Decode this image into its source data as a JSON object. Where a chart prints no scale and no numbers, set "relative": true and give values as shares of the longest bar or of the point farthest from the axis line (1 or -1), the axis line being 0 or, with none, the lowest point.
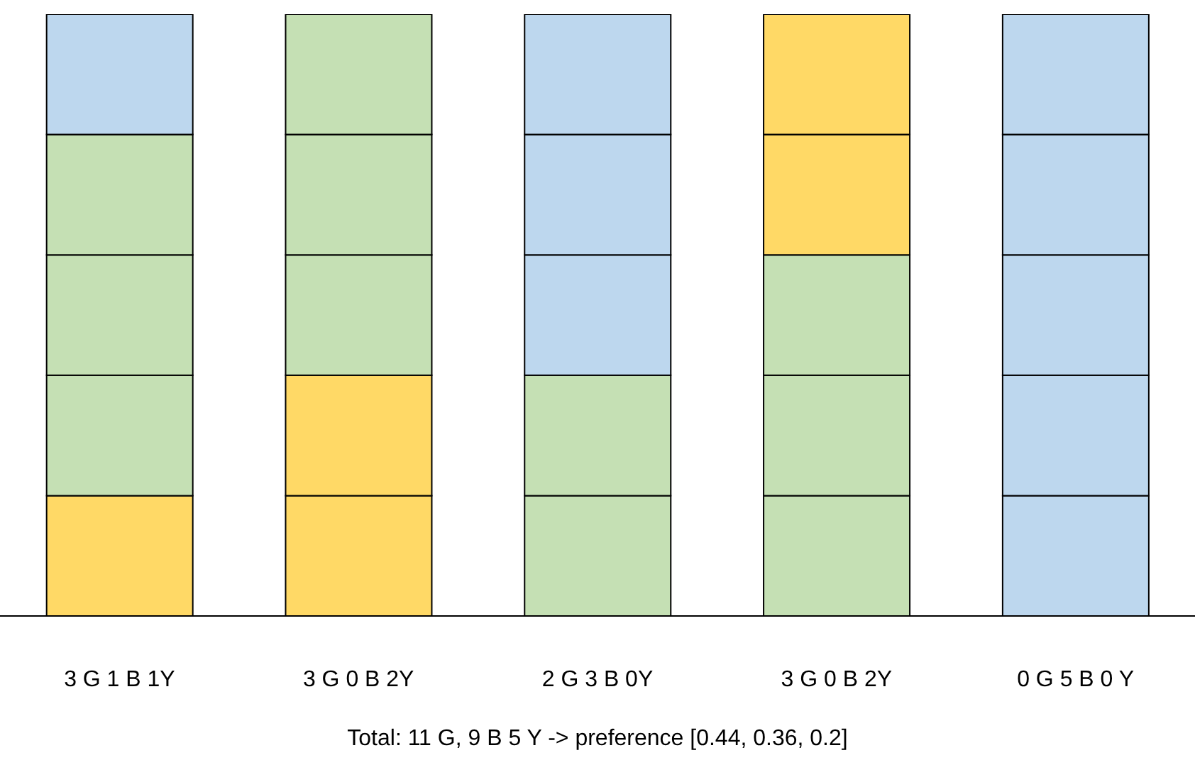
{
  "chart_data": {
    "type": "bar",
    "stacked": true,
    "relative": true,
    "categories": [
      "3 G 1 B 1Y",
      "3 G 0 B 2Y",
      "2 G 3 B 0Y",
      "3 G 0 B 2Y",
      "0 G 5 B 0 Y"
    ],
    "series": [
      {
        "values": [
          0.2,
          0.2,
          0.2,
          0.2,
          0.2
        ],
        "colors": [
          "#ffd966",
          "#ffd966",
          "#c5e0b4",
          "#c5e0b4",
          "#bdd7ee"
        ]
      },
      {
        "values": [
          0.2,
          0.2,
          0.2,
          0.2,
          0.2
        ],
        "colors": [
          "#c5e0b4",
          "#ffd966",
          "#c5e0b4",
          "#c5e0b4",
          "#bdd7ee"
        ]
      },
      {
        "values": [
          0.2,
          0.2,
          0.2,
          0.2,
          0.2
        ],
        "colors": [
          "#c5e0b4",
          "#c5e0b4",
          "#bdd7ee",
          "#c5e0b4",
          "#bdd7ee"
        ]
      },
      {
        "values": [
          0.2,
          0.2,
          0.2,
          0.2,
          0.2
        ],
        "colors": [
          "#c5e0b4",
          "#c5e0b4",
          "#bdd7ee",
          "#ffd966",
          "#bdd7ee"
        ]
      },
      {
        "values": [
          0.2,
          0.2,
          0.2,
          0.2,
          0.2
        ],
        "colors": [
          "#bdd7ee",
          "#c5e0b4",
          "#bdd7ee",
          "#ffd966",
          "#bdd7ee"
        ]
      }
    ],
    "annotations": [
      "Total: 11 G, 9 B 5 Y -> preference [0.44, 0.36, 0.2]"
    ]
  }
}
